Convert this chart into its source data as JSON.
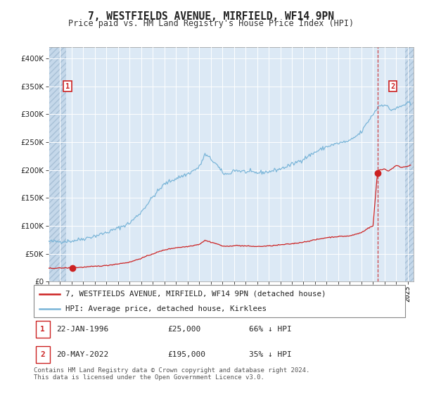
{
  "title": "7, WESTFIELDS AVENUE, MIRFIELD, WF14 9PN",
  "subtitle": "Price paid vs. HM Land Registry's House Price Index (HPI)",
  "ylim": [
    0,
    420000
  ],
  "yticks": [
    0,
    50000,
    100000,
    150000,
    200000,
    250000,
    300000,
    350000,
    400000
  ],
  "xlim_start": 1994.0,
  "xlim_end": 2025.5,
  "plot_bg_color": "#dce9f5",
  "grid_color": "#ffffff",
  "hpi_line_color": "#7ab5d8",
  "price_line_color": "#cc2222",
  "dashed_line_color": "#cc2222",
  "sale1_date": 1996.07,
  "sale1_price": 25000,
  "sale2_date": 2022.38,
  "sale2_price": 195000,
  "legend_line1": "7, WESTFIELDS AVENUE, MIRFIELD, WF14 9PN (detached house)",
  "legend_line2": "HPI: Average price, detached house, Kirklees",
  "footnote": "Contains HM Land Registry data © Crown copyright and database right 2024.\nThis data is licensed under the Open Government Licence v3.0.",
  "hpi_anchors_t": [
    1994.0,
    1995.0,
    1996.0,
    1997.0,
    1998.0,
    1999.0,
    2000.0,
    2001.0,
    2002.0,
    2003.0,
    2004.0,
    2005.0,
    2006.0,
    2007.0,
    2007.5,
    2008.0,
    2008.5,
    2009.0,
    2009.5,
    2010.0,
    2011.0,
    2012.0,
    2013.0,
    2014.0,
    2015.0,
    2016.0,
    2017.0,
    2018.0,
    2019.0,
    2020.0,
    2021.0,
    2021.5,
    2022.0,
    2022.5,
    2023.0,
    2023.5,
    2024.0,
    2024.5,
    2025.0,
    2025.3
  ],
  "hpi_anchors_v": [
    72000,
    72000,
    73000,
    77000,
    82000,
    88000,
    96000,
    105000,
    125000,
    152000,
    175000,
    185000,
    193000,
    205000,
    228000,
    220000,
    210000,
    195000,
    192000,
    200000,
    197000,
    195000,
    197000,
    202000,
    210000,
    220000,
    232000,
    242000,
    248000,
    252000,
    268000,
    285000,
    300000,
    315000,
    318000,
    308000,
    310000,
    315000,
    320000,
    318000
  ],
  "price_anchors_t": [
    1994.0,
    1995.0,
    1996.07,
    1997.0,
    1998.0,
    1999.0,
    2000.0,
    2001.0,
    2002.0,
    2003.0,
    2004.0,
    2005.0,
    2006.0,
    2007.0,
    2007.5,
    2008.0,
    2008.5,
    2009.0,
    2009.5,
    2010.0,
    2011.0,
    2012.0,
    2013.0,
    2014.0,
    2015.0,
    2016.0,
    2017.0,
    2018.0,
    2019.0,
    2020.0,
    2021.0,
    2021.5,
    2022.0,
    2022.38,
    2022.5,
    2023.0,
    2023.3,
    2023.8,
    2024.0,
    2024.5,
    2025.0,
    2025.3
  ],
  "price_anchors_v": [
    24000,
    24500,
    25000,
    26000,
    27500,
    29000,
    32000,
    35000,
    42000,
    50000,
    57000,
    61000,
    63000,
    67000,
    74000,
    71000,
    68000,
    64000,
    63000,
    65000,
    64000,
    63000,
    64000,
    66000,
    68000,
    71000,
    75000,
    79000,
    81000,
    82000,
    88000,
    95000,
    100000,
    195000,
    200000,
    202000,
    198000,
    205000,
    208000,
    205000,
    207000,
    210000
  ],
  "hatch_left_end": 1995.5,
  "hatch_right_start": 2024.75
}
